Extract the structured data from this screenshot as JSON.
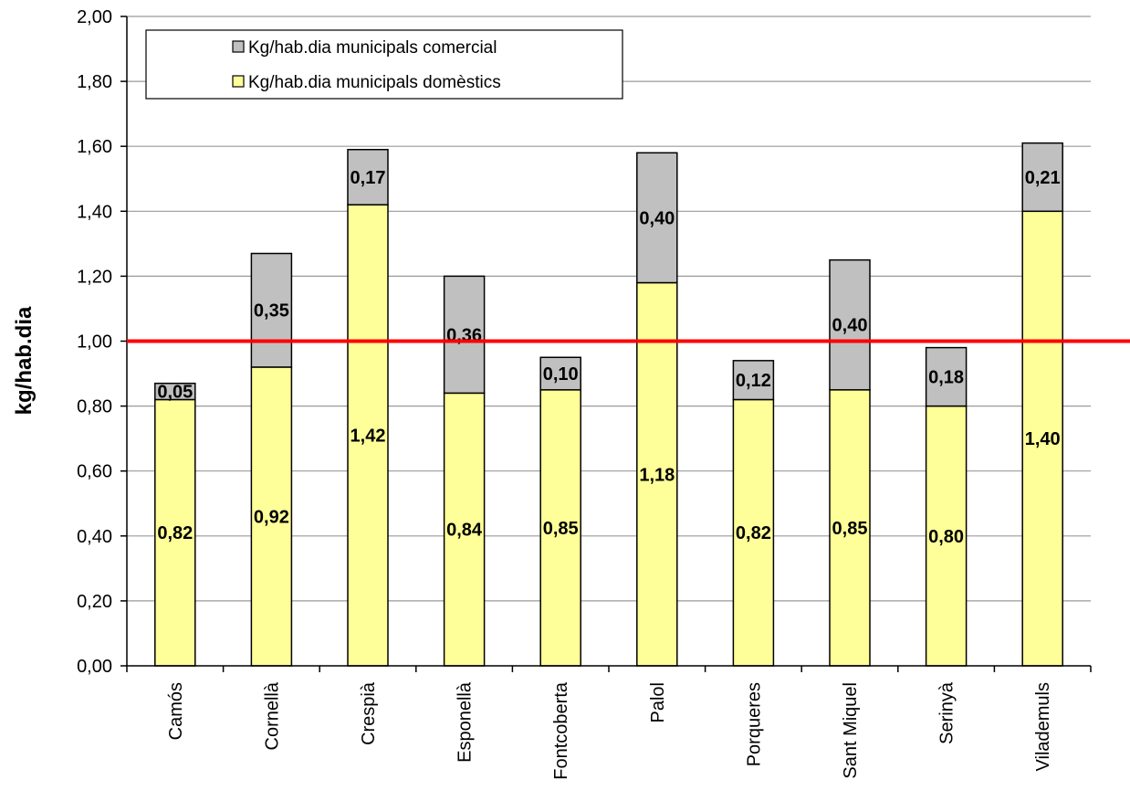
{
  "chart_data": {
    "type": "bar",
    "stacked": true,
    "title": "",
    "xlabel": "",
    "ylabel": "kg/hab.dia",
    "ylim": [
      0,
      2.0
    ],
    "ytick_step": 0.2,
    "yticks": [
      "0,00",
      "0,20",
      "0,40",
      "0,60",
      "0,80",
      "1,00",
      "1,20",
      "1,40",
      "1,60",
      "1,80",
      "2,00"
    ],
    "grid": true,
    "legend_position": "top-left",
    "reference_line": {
      "value": 1.0,
      "color": "#ff0000"
    },
    "categories": [
      "Camós",
      "Cornellà",
      "Crespià",
      "Esponellà",
      "Fontcoberta",
      "Palol",
      "Porqueres",
      "Sant Miquel",
      "Serinyà",
      "Vilademuls"
    ],
    "series": [
      {
        "name": "Kg/hab.dia municipals domèstics",
        "color": "#ffff99",
        "values": [
          0.82,
          0.92,
          1.42,
          0.84,
          0.85,
          1.18,
          0.82,
          0.85,
          0.8,
          1.4
        ],
        "labels": [
          "0,82",
          "0,92",
          "1,42",
          "0,84",
          "0,85",
          "1,18",
          "0,82",
          "0,85",
          "0,80",
          "1,40"
        ]
      },
      {
        "name": "Kg/hab.dia municipals comercial",
        "color": "#c0c0c0",
        "values": [
          0.05,
          0.35,
          0.17,
          0.36,
          0.1,
          0.4,
          0.12,
          0.4,
          0.18,
          0.21
        ],
        "labels": [
          "0,05",
          "0,35",
          "0,17",
          "0,36",
          "0,10",
          "0,40",
          "0,12",
          "0,40",
          "0,18",
          "0,21"
        ]
      }
    ],
    "legend_order": [
      1,
      0
    ]
  }
}
